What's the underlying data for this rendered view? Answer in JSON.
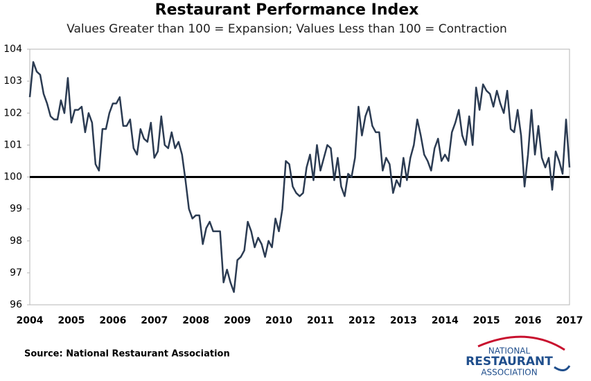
{
  "chart_data": {
    "type": "line",
    "title": "Restaurant Performance Index",
    "subtitle": "Values Greater than 100 = Expansion; Values Less than 100 = Contraction",
    "source": "Source: National Restaurant Association",
    "categories": [
      "2004",
      null,
      null,
      null,
      null,
      null,
      null,
      null,
      null,
      null,
      null,
      null,
      "2005",
      null,
      null,
      null,
      null,
      null,
      null,
      null,
      null,
      null,
      null,
      null,
      "2006",
      null,
      null,
      null,
      null,
      null,
      null,
      null,
      null,
      null,
      null,
      null,
      "2007",
      null,
      null,
      null,
      null,
      null,
      null,
      null,
      null,
      null,
      null,
      null,
      "2008",
      null,
      null,
      null,
      null,
      null,
      null,
      null,
      null,
      null,
      null,
      null,
      "2009",
      null,
      null,
      null,
      null,
      null,
      null,
      null,
      null,
      null,
      null,
      null,
      "2010",
      null,
      null,
      null,
      null,
      null,
      null,
      null,
      null,
      null,
      null,
      null,
      "2011",
      null,
      null,
      null,
      null,
      null,
      null,
      null,
      null,
      null,
      null,
      null,
      "2012",
      null,
      null,
      null,
      null,
      null,
      null,
      null,
      null,
      null,
      null,
      null,
      "2013",
      null,
      null,
      null,
      null,
      null,
      null,
      null,
      null,
      null,
      null,
      null,
      "2014",
      null,
      null,
      null,
      null,
      null,
      null,
      null,
      null,
      null,
      null,
      null,
      "2015",
      null,
      null,
      null,
      null,
      null,
      null,
      null,
      null,
      null,
      null,
      null,
      "2016",
      null,
      null,
      null,
      null,
      null,
      null,
      null,
      null,
      null,
      null,
      null,
      "2017"
    ],
    "values": [
      102.5,
      103.6,
      103.3,
      103.2,
      102.6,
      102.3,
      101.9,
      101.8,
      101.8,
      102.4,
      102.0,
      103.1,
      101.7,
      102.1,
      102.1,
      102.2,
      101.4,
      102.0,
      101.7,
      100.4,
      100.2,
      101.5,
      101.5,
      102.0,
      102.3,
      102.3,
      102.5,
      101.6,
      101.6,
      101.8,
      100.9,
      100.7,
      101.5,
      101.2,
      101.1,
      101.7,
      100.6,
      100.8,
      101.9,
      101.0,
      100.9,
      101.4,
      100.9,
      101.1,
      100.7,
      99.9,
      99.0,
      98.7,
      98.8,
      98.8,
      97.9,
      98.4,
      98.6,
      98.3,
      98.3,
      98.3,
      96.7,
      97.1,
      96.7,
      96.4,
      97.4,
      97.5,
      97.7,
      98.6,
      98.3,
      97.8,
      98.1,
      97.9,
      97.5,
      98.0,
      97.8,
      98.7,
      98.3,
      99.0,
      100.5,
      100.4,
      99.7,
      99.5,
      99.4,
      99.5,
      100.3,
      100.7,
      99.9,
      101.0,
      100.2,
      100.6,
      101.0,
      100.9,
      99.9,
      100.6,
      99.7,
      99.4,
      100.1,
      100.0,
      100.6,
      102.2,
      101.3,
      101.9,
      102.2,
      101.6,
      101.4,
      101.4,
      100.2,
      100.6,
      100.4,
      99.5,
      99.9,
      99.7,
      100.6,
      99.9,
      100.6,
      101.0,
      101.8,
      101.3,
      100.7,
      100.5,
      100.2,
      100.9,
      101.2,
      100.5,
      100.7,
      100.5,
      101.4,
      101.7,
      102.1,
      101.3,
      101.0,
      101.9,
      101.0,
      102.8,
      102.1,
      102.9,
      102.7,
      102.6,
      102.2,
      102.7,
      102.3,
      102.0,
      102.7,
      101.5,
      101.4,
      102.1,
      101.3,
      99.7,
      100.7,
      102.1,
      100.7,
      101.6,
      100.6,
      100.3,
      100.6,
      99.6,
      100.8,
      100.5,
      100.1,
      101.8,
      100.3
    ],
    "color": "#2b3b52",
    "reference_line": 100,
    "ylim": [
      96,
      104
    ],
    "yticks": [
      96,
      97,
      98,
      99,
      100,
      101,
      102,
      103,
      104
    ],
    "grid": false
  },
  "logo": [
    "NATIONAL",
    "RESTAURANT",
    "ASSOCIATION"
  ]
}
